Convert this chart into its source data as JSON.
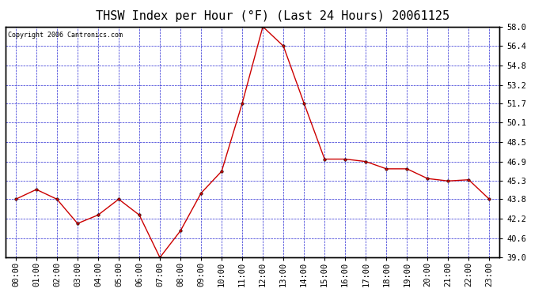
{
  "title": "THSW Index per Hour (°F) (Last 24 Hours) 20061125",
  "copyright": "Copyright 2006 Cantronics.com",
  "hours": [
    0,
    1,
    2,
    3,
    4,
    5,
    6,
    7,
    8,
    9,
    10,
    11,
    12,
    13,
    14,
    15,
    16,
    17,
    18,
    19,
    20,
    21,
    22,
    23
  ],
  "hour_labels": [
    "00:00",
    "01:00",
    "02:00",
    "03:00",
    "04:00",
    "05:00",
    "06:00",
    "07:00",
    "08:00",
    "09:00",
    "10:00",
    "11:00",
    "12:00",
    "13:00",
    "14:00",
    "15:00",
    "16:00",
    "17:00",
    "18:00",
    "19:00",
    "20:00",
    "21:00",
    "22:00",
    "23:00"
  ],
  "values": [
    43.8,
    44.6,
    43.8,
    41.8,
    42.5,
    43.8,
    42.5,
    39.0,
    41.2,
    44.3,
    46.1,
    51.7,
    58.0,
    56.4,
    51.7,
    47.1,
    47.1,
    46.9,
    46.3,
    46.3,
    45.5,
    45.3,
    45.4,
    43.8
  ],
  "ylim": [
    39.0,
    58.0
  ],
  "yticks": [
    39.0,
    40.6,
    42.2,
    43.8,
    45.3,
    46.9,
    48.5,
    50.1,
    51.7,
    53.2,
    54.8,
    56.4,
    58.0
  ],
  "line_color": "#cc0000",
  "marker_color": "#000000",
  "bg_color": "#ffffff",
  "plot_bg_color": "#ffffff",
  "grid_color": "#0000cc",
  "title_color": "#000000",
  "title_fontsize": 11,
  "copyright_fontsize": 6,
  "tick_fontsize": 7.5,
  "border_color": "#000000"
}
